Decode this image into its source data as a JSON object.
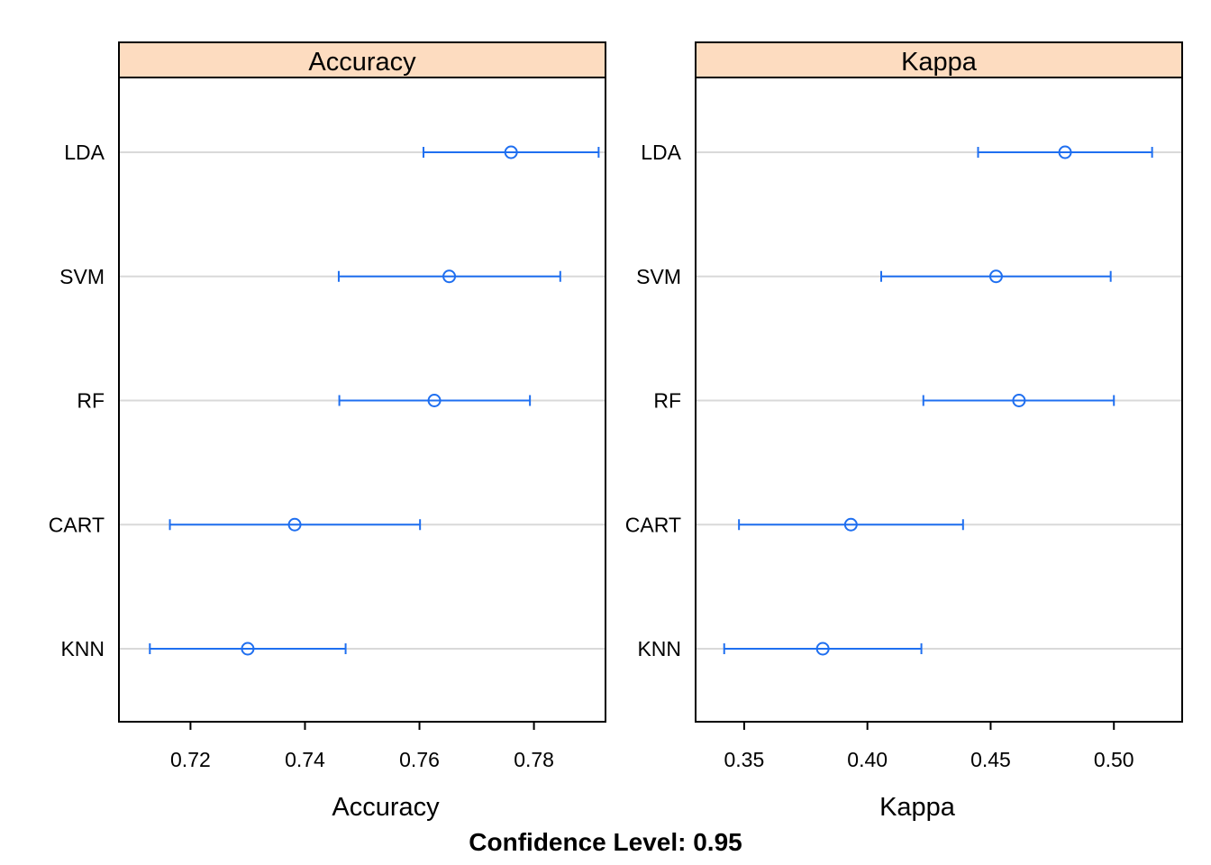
{
  "chart_data": {
    "type": "dotplot",
    "footer": "Confidence Level: 0.95",
    "categories": [
      "LDA",
      "SVM",
      "RF",
      "CART",
      "KNN"
    ],
    "colors": {
      "series": "#1f6ff0",
      "strip": "#fddcc0",
      "grid": "#d9d9d9",
      "frame": "#000000"
    },
    "panels": [
      {
        "strip_label": "Accuracy",
        "xlabel": "Accuracy",
        "xlim": [
          0.7075,
          0.7925
        ],
        "ticks": [
          0.72,
          0.74,
          0.76,
          0.78
        ],
        "tick_labels": [
          "0.72",
          "0.74",
          "0.76",
          "0.78"
        ],
        "points": [
          {
            "model": "LDA",
            "estimate": 0.776,
            "lower": 0.7607,
            "upper": 0.7913
          },
          {
            "model": "SVM",
            "estimate": 0.7652,
            "lower": 0.7459,
            "upper": 0.7846
          },
          {
            "model": "RF",
            "estimate": 0.7626,
            "lower": 0.746,
            "upper": 0.7793
          },
          {
            "model": "CART",
            "estimate": 0.7382,
            "lower": 0.7164,
            "upper": 0.7601
          },
          {
            "model": "KNN",
            "estimate": 0.73,
            "lower": 0.7129,
            "upper": 0.7471
          }
        ]
      },
      {
        "strip_label": "Kappa",
        "xlabel": "Kappa",
        "xlim": [
          0.3303,
          0.5277
        ],
        "ticks": [
          0.35,
          0.4,
          0.45,
          0.5
        ],
        "tick_labels": [
          "0.35",
          "0.40",
          "0.45",
          "0.50"
        ],
        "points": [
          {
            "model": "LDA",
            "estimate": 0.4802,
            "lower": 0.4449,
            "upper": 0.5155
          },
          {
            "model": "SVM",
            "estimate": 0.4522,
            "lower": 0.4056,
            "upper": 0.4987
          },
          {
            "model": "RF",
            "estimate": 0.4615,
            "lower": 0.4227,
            "upper": 0.5
          },
          {
            "model": "CART",
            "estimate": 0.3933,
            "lower": 0.3479,
            "upper": 0.4388
          },
          {
            "model": "KNN",
            "estimate": 0.3819,
            "lower": 0.3419,
            "upper": 0.4219
          }
        ]
      }
    ]
  }
}
